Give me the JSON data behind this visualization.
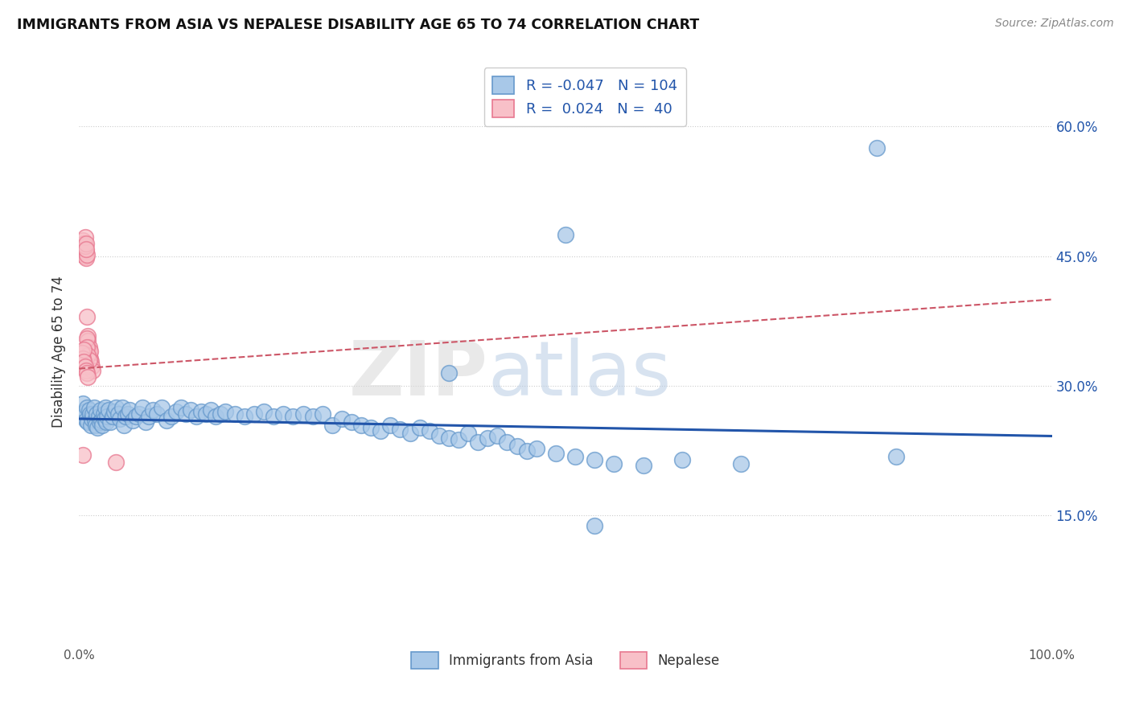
{
  "title": "IMMIGRANTS FROM ASIA VS NEPALESE DISABILITY AGE 65 TO 74 CORRELATION CHART",
  "source": "Source: ZipAtlas.com",
  "ylabel": "Disability Age 65 to 74",
  "y_ticks": [
    0.15,
    0.3,
    0.45,
    0.6
  ],
  "y_tick_labels": [
    "15.0%",
    "30.0%",
    "45.0%",
    "60.0%"
  ],
  "xlim": [
    0.0,
    1.0
  ],
  "ylim": [
    0.0,
    0.68
  ],
  "legend_r_blue": "-0.047",
  "legend_n_blue": "104",
  "legend_r_pink": "0.024",
  "legend_n_pink": "40",
  "blue_marker_color": "#a8c8e8",
  "blue_edge_color": "#6699cc",
  "pink_marker_color": "#f8c0c8",
  "pink_edge_color": "#e87890",
  "blue_line_color": "#2255aa",
  "pink_line_color": "#cc5566",
  "watermark_zip": "ZIP",
  "watermark_atlas": "atlas",
  "blue_trend_y_start": 0.262,
  "blue_trend_y_end": 0.242,
  "pink_trend_y_start": 0.32,
  "pink_trend_y_end": 0.4,
  "blue_scatter_x": [
    0.004,
    0.005,
    0.006,
    0.007,
    0.008,
    0.009,
    0.01,
    0.011,
    0.012,
    0.013,
    0.014,
    0.015,
    0.016,
    0.017,
    0.018,
    0.019,
    0.02,
    0.021,
    0.022,
    0.023,
    0.024,
    0.025,
    0.026,
    0.027,
    0.028,
    0.029,
    0.03,
    0.032,
    0.034,
    0.036,
    0.038,
    0.04,
    0.042,
    0.044,
    0.046,
    0.048,
    0.05,
    0.052,
    0.055,
    0.058,
    0.062,
    0.065,
    0.068,
    0.072,
    0.076,
    0.08,
    0.085,
    0.09,
    0.095,
    0.1,
    0.105,
    0.11,
    0.115,
    0.12,
    0.125,
    0.13,
    0.135,
    0.14,
    0.145,
    0.15,
    0.16,
    0.17,
    0.18,
    0.19,
    0.2,
    0.21,
    0.22,
    0.23,
    0.24,
    0.25,
    0.26,
    0.27,
    0.28,
    0.29,
    0.3,
    0.31,
    0.32,
    0.33,
    0.34,
    0.35,
    0.36,
    0.37,
    0.38,
    0.39,
    0.4,
    0.41,
    0.42,
    0.43,
    0.44,
    0.45,
    0.46,
    0.47,
    0.49,
    0.51,
    0.53,
    0.55,
    0.58,
    0.62,
    0.68,
    0.84,
    0.38,
    0.5,
    0.53,
    0.82
  ],
  "blue_scatter_y": [
    0.28,
    0.265,
    0.27,
    0.26,
    0.275,
    0.258,
    0.272,
    0.268,
    0.255,
    0.262,
    0.268,
    0.275,
    0.26,
    0.255,
    0.268,
    0.252,
    0.265,
    0.258,
    0.272,
    0.26,
    0.255,
    0.268,
    0.262,
    0.275,
    0.258,
    0.265,
    0.272,
    0.258,
    0.265,
    0.27,
    0.275,
    0.268,
    0.262,
    0.275,
    0.255,
    0.265,
    0.268,
    0.272,
    0.26,
    0.265,
    0.268,
    0.275,
    0.258,
    0.265,
    0.272,
    0.268,
    0.275,
    0.26,
    0.265,
    0.27,
    0.275,
    0.268,
    0.272,
    0.265,
    0.27,
    0.268,
    0.272,
    0.265,
    0.268,
    0.27,
    0.268,
    0.265,
    0.268,
    0.27,
    0.265,
    0.268,
    0.265,
    0.268,
    0.265,
    0.268,
    0.255,
    0.262,
    0.258,
    0.255,
    0.252,
    0.248,
    0.255,
    0.25,
    0.245,
    0.252,
    0.248,
    0.242,
    0.24,
    0.238,
    0.245,
    0.235,
    0.24,
    0.242,
    0.235,
    0.23,
    0.225,
    0.228,
    0.222,
    0.218,
    0.215,
    0.21,
    0.208,
    0.215,
    0.21,
    0.218,
    0.315,
    0.475,
    0.138,
    0.575
  ],
  "pink_scatter_x": [
    0.003,
    0.004,
    0.004,
    0.005,
    0.005,
    0.006,
    0.006,
    0.007,
    0.007,
    0.008,
    0.008,
    0.009,
    0.009,
    0.01,
    0.01,
    0.011,
    0.011,
    0.012,
    0.013,
    0.014,
    0.004,
    0.005,
    0.006,
    0.006,
    0.007,
    0.007,
    0.008,
    0.008,
    0.009,
    0.01,
    0.003,
    0.004,
    0.005,
    0.005,
    0.006,
    0.007,
    0.008,
    0.009,
    0.004,
    0.038
  ],
  "pink_scatter_y": [
    0.46,
    0.458,
    0.452,
    0.46,
    0.455,
    0.458,
    0.45,
    0.455,
    0.448,
    0.452,
    0.38,
    0.358,
    0.352,
    0.345,
    0.338,
    0.332,
    0.34,
    0.328,
    0.322,
    0.318,
    0.468,
    0.465,
    0.462,
    0.472,
    0.465,
    0.458,
    0.355,
    0.345,
    0.335,
    0.33,
    0.338,
    0.332,
    0.342,
    0.328,
    0.322,
    0.318,
    0.315,
    0.31,
    0.22,
    0.212
  ]
}
